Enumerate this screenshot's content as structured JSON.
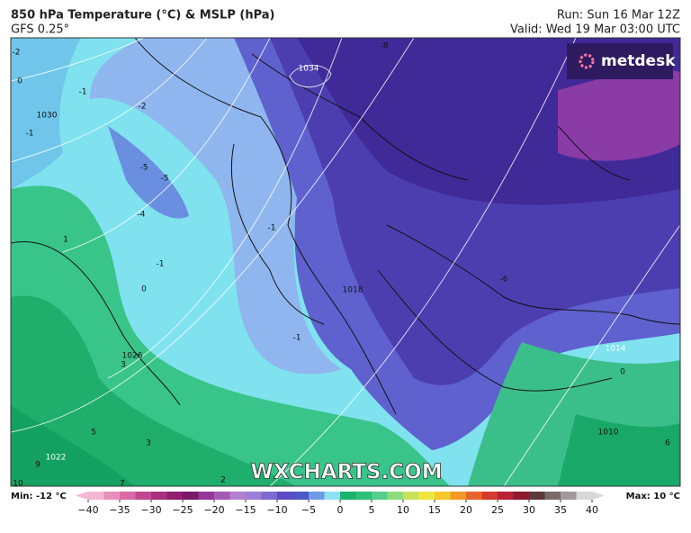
{
  "header": {
    "title": "850 hPa Temperature (°C) & MSLP (hPa)",
    "model": "GFS 0.25°",
    "run": "Run: Sun 16 Mar 12Z",
    "valid": "Valid: Wed 19 Mar 03:00 UTC"
  },
  "logo": "metdesk",
  "watermark": "WXCHARTS.COM",
  "map_labels": [
    "1034",
    "1030",
    "1026",
    "1022",
    "1018",
    "1014",
    "1010",
    "-2",
    "0",
    "-1",
    "-2",
    "-1",
    "-5",
    "-5",
    "-4",
    "1",
    "-1",
    "-1",
    "0",
    "-1",
    "-8",
    "-6",
    "0",
    "3",
    "3",
    "5",
    "9",
    "10",
    "2",
    "7",
    "6"
  ],
  "legend": {
    "min": "Min: -12 °C",
    "max": "Max: 10 °C",
    "ticks": [
      {
        "value": -40,
        "label": "−40"
      },
      {
        "value": -35,
        "label": "−35"
      },
      {
        "value": -30,
        "label": "−30"
      },
      {
        "value": -25,
        "label": "−25"
      },
      {
        "value": -20,
        "label": "−20"
      },
      {
        "value": -15,
        "label": "−15"
      },
      {
        "value": -10,
        "label": "−10"
      },
      {
        "value": -5,
        "label": "−5"
      },
      0,
      5,
      10,
      15,
      20,
      25,
      30,
      35,
      40
    ],
    "range": [
      -40,
      40
    ],
    "colors": [
      "#f4b6d0",
      "#e78fbb",
      "#d86aa6",
      "#c2478f",
      "#a8307d",
      "#8e1f71",
      "#7a1869",
      "#93379a",
      "#a55bb5",
      "#b47fcc",
      "#9b7fd6",
      "#7c6ad0",
      "#5a4cc3",
      "#4f56c6",
      "#6f9be6",
      "#8fe0f0",
      "#18b36a",
      "#2dc07a",
      "#55cf8c",
      "#8edc7d",
      "#c8e35a",
      "#f0e640",
      "#f5c82c",
      "#f19a26",
      "#e6652a",
      "#d63a2c",
      "#b82233",
      "#8f1a2e",
      "#5b3a3a",
      "#7b6a6a",
      "#a29a9a",
      "#d8d8d8"
    ]
  }
}
